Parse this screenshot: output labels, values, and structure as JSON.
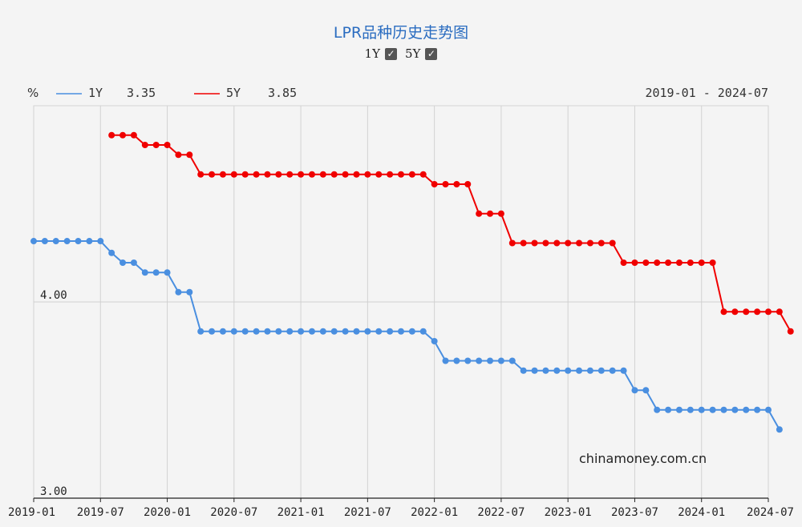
{
  "chart_data": {
    "type": "line",
    "title": "LPR品种历史走势图",
    "unit_label": "%",
    "date_range": "2019-01 - 2024-07",
    "ylim": [
      3.0,
      5.0
    ],
    "yticks": [
      3.0,
      4.0
    ],
    "ytick_labels": [
      "3.00",
      "4.00"
    ],
    "xlim": [
      "2019-01",
      "2024-07"
    ],
    "xtick_labels": [
      "2019-01",
      "2019-07",
      "2020-01",
      "2020-07",
      "2021-01",
      "2021-07",
      "2022-01",
      "2022-07",
      "2023-01",
      "2023-07",
      "2024-01",
      "2024-07"
    ],
    "grid": true,
    "series": [
      {
        "name": "1Y",
        "latest": "3.35",
        "color": "#4a8fe0",
        "start": "2019-01",
        "values": [
          4.31,
          4.31,
          4.31,
          4.31,
          4.31,
          4.31,
          4.31,
          4.25,
          4.2,
          4.2,
          4.15,
          4.15,
          4.15,
          4.05,
          4.05,
          3.85,
          3.85,
          3.85,
          3.85,
          3.85,
          3.85,
          3.85,
          3.85,
          3.85,
          3.85,
          3.85,
          3.85,
          3.85,
          3.85,
          3.85,
          3.85,
          3.85,
          3.85,
          3.85,
          3.85,
          3.85,
          3.8,
          3.7,
          3.7,
          3.7,
          3.7,
          3.7,
          3.7,
          3.7,
          3.65,
          3.65,
          3.65,
          3.65,
          3.65,
          3.65,
          3.65,
          3.65,
          3.65,
          3.65,
          3.55,
          3.55,
          3.45,
          3.45,
          3.45,
          3.45,
          3.45,
          3.45,
          3.45,
          3.45,
          3.45,
          3.45,
          3.45,
          3.35
        ]
      },
      {
        "name": "5Y",
        "latest": "3.85",
        "color": "#f00000",
        "start": "2019-08",
        "values": [
          4.85,
          4.85,
          4.85,
          4.8,
          4.8,
          4.8,
          4.75,
          4.75,
          4.65,
          4.65,
          4.65,
          4.65,
          4.65,
          4.65,
          4.65,
          4.65,
          4.65,
          4.65,
          4.65,
          4.65,
          4.65,
          4.65,
          4.65,
          4.65,
          4.65,
          4.65,
          4.65,
          4.65,
          4.65,
          4.6,
          4.6,
          4.6,
          4.6,
          4.45,
          4.45,
          4.45,
          4.3,
          4.3,
          4.3,
          4.3,
          4.3,
          4.3,
          4.3,
          4.3,
          4.3,
          4.3,
          4.2,
          4.2,
          4.2,
          4.2,
          4.2,
          4.2,
          4.2,
          4.2,
          4.2,
          3.95,
          3.95,
          3.95,
          3.95,
          3.95,
          3.95,
          3.85
        ]
      }
    ]
  },
  "toggles": [
    {
      "label": "1Y",
      "checked": true
    },
    {
      "label": "5Y",
      "checked": true
    }
  ],
  "watermark": "chinamoney.com.cn",
  "icons": {
    "checkbox": "checkbox-checked-icon"
  }
}
